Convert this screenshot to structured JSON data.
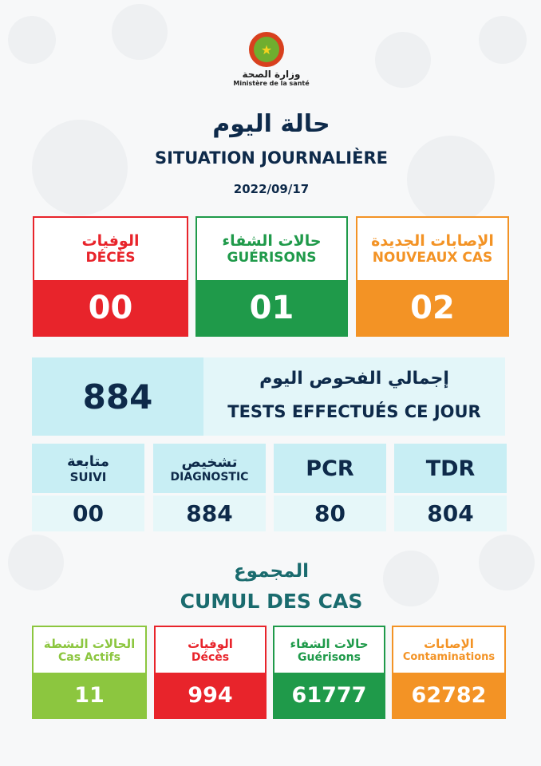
{
  "header": {
    "ministry_ar": "وزارة الصحة",
    "ministry_fr": "Ministère de la santé",
    "title_ar": "حالة اليوم",
    "title_fr": "SITUATION JOURNALIÈRE",
    "date": "2022/09/17"
  },
  "daily": [
    {
      "ar": "الوفيات",
      "fr": "DÉCÈS",
      "value": "00",
      "color": "#e8242b"
    },
    {
      "ar": "حالات الشفاء",
      "fr": "GUÉRISONS",
      "value": "01",
      "color": "#1f9a4a"
    },
    {
      "ar": "الإصابات الجديدة",
      "fr": "NOUVEAUX CAS",
      "value": "02",
      "color": "#f39325"
    }
  ],
  "tests": {
    "value": "884",
    "ar": "إجمالي الفحوص اليوم",
    "fr": "TESTS EFFECTUÉS CE JOUR"
  },
  "tests_breakdown": [
    {
      "ar": "متابعة",
      "fr": "SUIVI",
      "value": "00"
    },
    {
      "ar": "تشخيص",
      "fr": "DIAGNOSTIC",
      "value": "884"
    },
    {
      "ar": "",
      "fr": "PCR",
      "value": "80"
    },
    {
      "ar": "",
      "fr": "TDR",
      "value": "804"
    }
  ],
  "cumul": {
    "title_ar": "المجموع",
    "title_fr": "CUMUL DES CAS",
    "items": [
      {
        "ar": "الحالات النشطة",
        "fr": "Cas Actifs",
        "value": "11",
        "color": "#8cc63f"
      },
      {
        "ar": "الوفيات",
        "fr": "Décès",
        "value": "994",
        "color": "#e8242b"
      },
      {
        "ar": "حالات الشفاء",
        "fr": "Guérisons",
        "value": "61777",
        "color": "#1f9a4a"
      },
      {
        "ar": "الإصابات",
        "fr": "Contaminations",
        "value": "62782",
        "color": "#f39325"
      }
    ]
  }
}
